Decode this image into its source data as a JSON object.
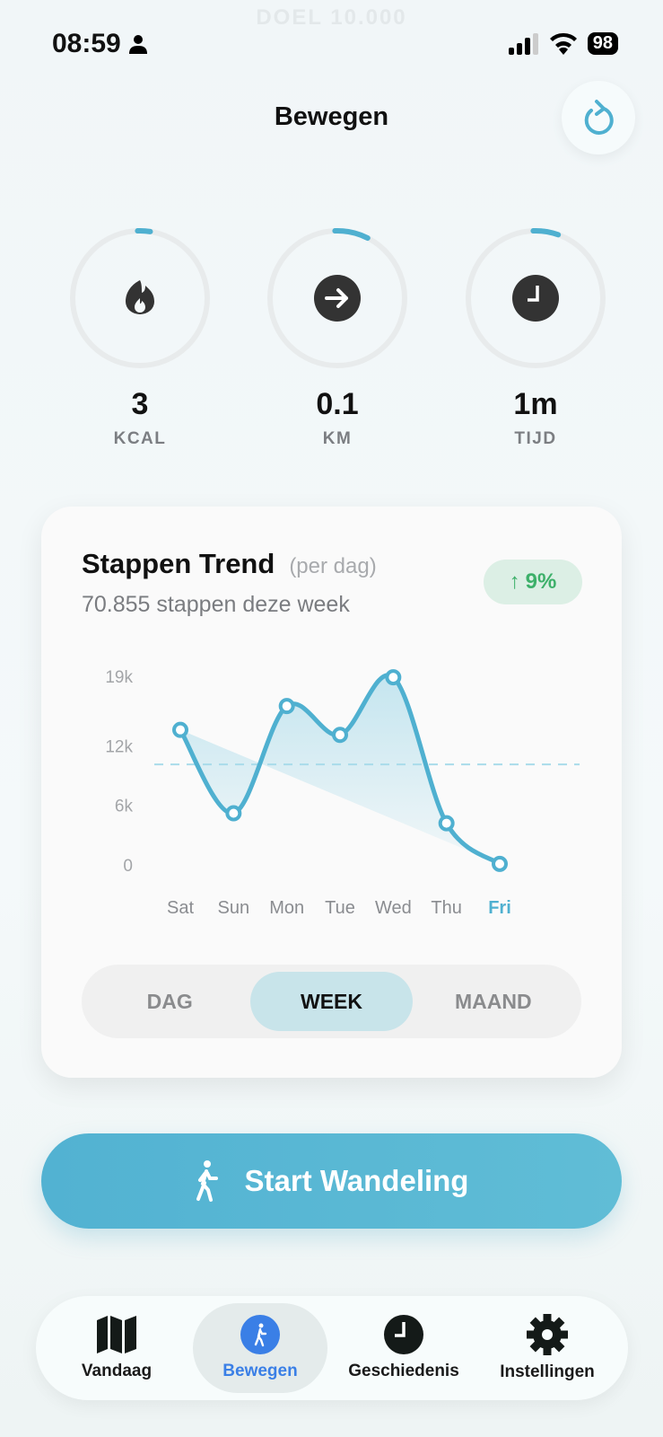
{
  "background_text": "DOEL 10.000",
  "status_bar": {
    "time": "08:59",
    "battery": "98"
  },
  "header": {
    "title": "Bewegen",
    "refresh_icon": "refresh-icon"
  },
  "stats": [
    {
      "icon": "flame-icon",
      "value": "3",
      "label": "KCAL",
      "progress": 0.03
    },
    {
      "icon": "arrow-right-circle-icon",
      "value": "0.1",
      "label": "KM",
      "progress": 0.08
    },
    {
      "icon": "clock-icon",
      "value": "1m",
      "label": "TIJD",
      "progress": 0.06
    }
  ],
  "card": {
    "title": "Stappen Trend",
    "title_suffix": "(per dag)",
    "subtitle": "70.855 stappen deze week",
    "badge": {
      "arrow": "↑",
      "value": "9%"
    },
    "segments": [
      {
        "label": "DAG"
      },
      {
        "label": "WEEK",
        "active": true
      },
      {
        "label": "MAAND"
      }
    ]
  },
  "chart_data": {
    "type": "line",
    "categories": [
      "Sat",
      "Sun",
      "Mon",
      "Tue",
      "Wed",
      "Thu",
      "Fri"
    ],
    "highlighted_category": "Fri",
    "values": [
      13600,
      5200,
      16000,
      13100,
      18900,
      4200,
      100
    ],
    "average_line": 10122,
    "y_ticks": [
      {
        "value": 0,
        "label": "0"
      },
      {
        "value": 6000,
        "label": "6k"
      },
      {
        "value": 12000,
        "label": "12k"
      },
      {
        "value": 19000,
        "label": "19k"
      }
    ],
    "ylim": [
      0,
      19000
    ],
    "grid": false,
    "colors": {
      "line": "#4fb0d0",
      "fill": "#bfe3ee",
      "average": "#a9dbea",
      "highlight": "#4fb0d0"
    }
  },
  "start_button": {
    "label": "Start Wandeling",
    "icon": "walking-icon"
  },
  "tab_bar": [
    {
      "label": "Vandaag",
      "icon": "map-icon"
    },
    {
      "label": "Bewegen",
      "icon": "walking-icon",
      "active": true
    },
    {
      "label": "Geschiedenis",
      "icon": "clock-icon"
    },
    {
      "label": "Instellingen",
      "icon": "gear-icon"
    }
  ],
  "colors": {
    "accent": "#4fb0d0",
    "active_tab": "#3a7fe6",
    "badge_green": "#3db06a"
  }
}
